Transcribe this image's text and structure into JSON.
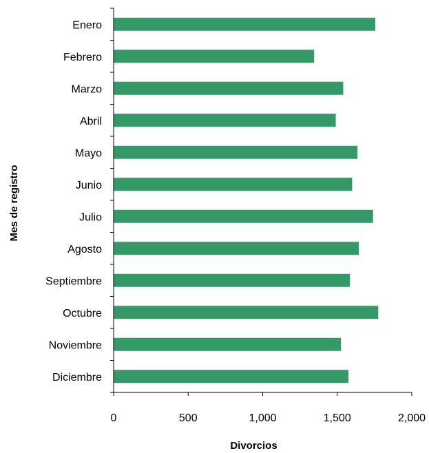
{
  "chart_data": {
    "type": "bar",
    "orientation": "horizontal",
    "categories": [
      "Enero",
      "Febrero",
      "Marzo",
      "Abril",
      "Mayo",
      "Junio",
      "Julio",
      "Agosto",
      "Septiembre",
      "Octubre",
      "Noviembre",
      "Diciembre"
    ],
    "values": [
      1755,
      1345,
      1540,
      1490,
      1635,
      1600,
      1740,
      1645,
      1585,
      1775,
      1525,
      1575
    ],
    "xlabel": "Divorcios",
    "ylabel": "Mes de registro",
    "xlim": [
      0,
      2000
    ],
    "xticks": [
      0,
      500,
      1000,
      1500,
      2000
    ],
    "xtick_labels": [
      "0",
      "500",
      "1,000",
      "1,500",
      "2,000"
    ],
    "grid": false,
    "legend": "none",
    "bar_color": "#339966"
  }
}
